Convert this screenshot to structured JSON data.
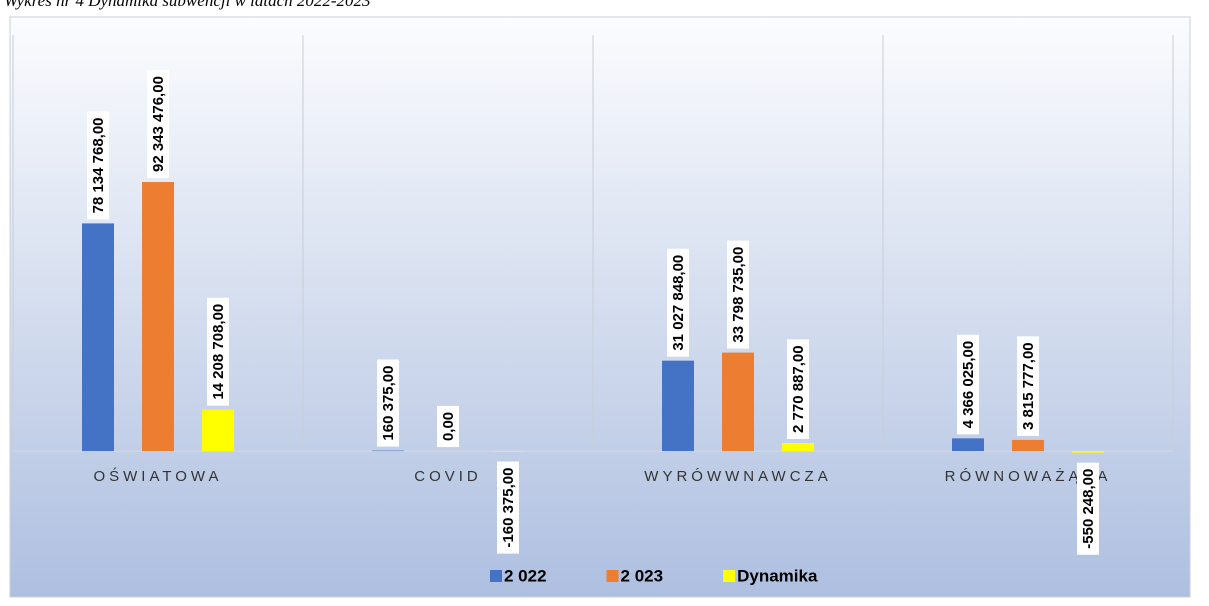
{
  "chart_data": {
    "type": "bar",
    "title": "Wykres nr 4 Dynamika subwencji w latach 2022-2023",
    "categories": [
      "OŚWIATOWA",
      "COVID",
      "WYRÓWWNAWCZA",
      "RÓWNOWAŻĄCA"
    ],
    "series": [
      {
        "name": "2 022",
        "color": "#4472c4",
        "values": [
          78134768,
          160375,
          31027848,
          4366025
        ],
        "value_labels": [
          "78 134 768,00",
          "160 375,00",
          "31 027 848,00",
          "4 366 025,00"
        ]
      },
      {
        "name": "2 023",
        "color": "#ed7d31",
        "values": [
          92343476,
          0,
          33798735,
          3815777
        ],
        "value_labels": [
          "92 343 476,00",
          "0,00",
          "33 798 735,00",
          "3 815 777,00"
        ]
      },
      {
        "name": "Dynamika",
        "color": "#ffff00",
        "values": [
          14208708,
          -160375,
          2770887,
          -550248
        ],
        "value_labels": [
          "14 208 708,00",
          "-160 375,00",
          "2 770 887,00",
          "-550 248,00"
        ]
      }
    ],
    "ylim": [
      -49400000,
      142800000
    ],
    "legend": "bottom"
  }
}
